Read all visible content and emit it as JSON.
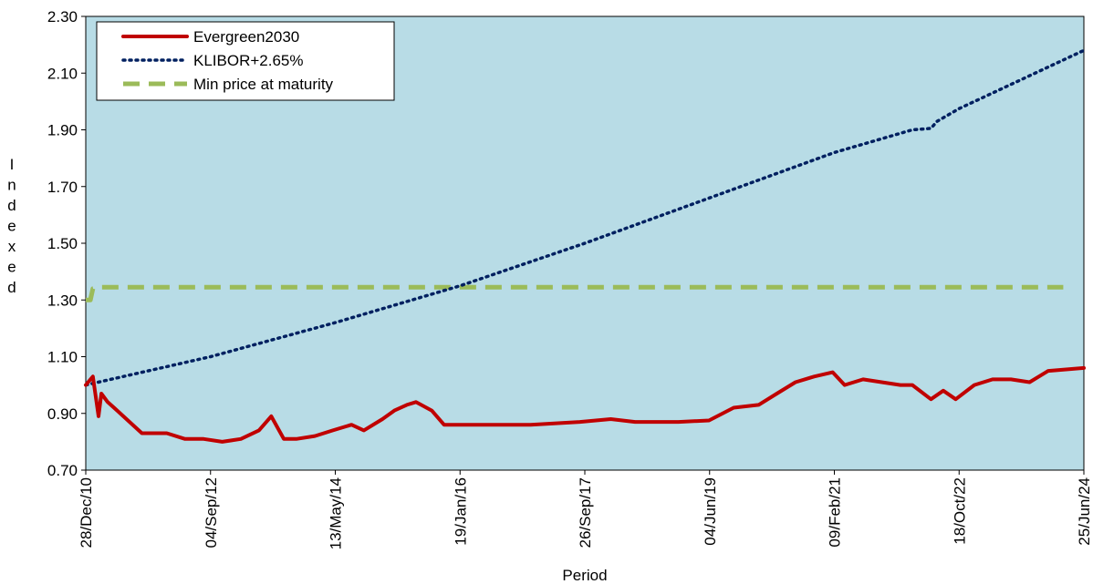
{
  "chart_data": {
    "type": "line",
    "title": "",
    "xlabel": "Period",
    "ylabel": "Indexed",
    "ylim": [
      0.7,
      2.3
    ],
    "yticks": [
      "0.70",
      "0.90",
      "1.10",
      "1.30",
      "1.50",
      "1.70",
      "1.90",
      "2.10",
      "2.30"
    ],
    "xlim": [
      "2010-12-28",
      "2024-06-25"
    ],
    "xticks": [
      {
        "date": "2010-12-28",
        "label": "28/Dec/10"
      },
      {
        "date": "2012-09-04",
        "label": "04/Sep/12"
      },
      {
        "date": "2014-05-13",
        "label": "13/May/14"
      },
      {
        "date": "2016-01-19",
        "label": "19/Jan/16"
      },
      {
        "date": "2017-09-26",
        "label": "26/Sep/17"
      },
      {
        "date": "2019-06-04",
        "label": "04/Jun/19"
      },
      {
        "date": "2021-02-09",
        "label": "09/Feb/21"
      },
      {
        "date": "2022-10-18",
        "label": "18/Oct/22"
      },
      {
        "date": "2024-06-25",
        "label": "25/Jun/24"
      }
    ],
    "grid": false,
    "legend_position": "top-left",
    "plot_background": "#b8dce6",
    "series": [
      {
        "name": "Evergreen2030",
        "color": "#c00000",
        "style": "solid",
        "x": [
          "2010-12-28",
          "2011-02-01",
          "2011-03-01",
          "2011-03-15",
          "2011-04-15",
          "2011-06-01",
          "2011-08-01",
          "2011-10-01",
          "2011-12-01",
          "2012-02-01",
          "2012-05-01",
          "2012-08-01",
          "2012-11-01",
          "2013-02-01",
          "2013-05-01",
          "2013-07-01",
          "2013-09-01",
          "2013-11-01",
          "2014-02-01",
          "2014-05-01",
          "2014-08-01",
          "2014-10-01",
          "2015-01-01",
          "2015-03-01",
          "2015-05-01",
          "2015-06-15",
          "2015-09-01",
          "2015-11-01",
          "2016-02-01",
          "2016-06-01",
          "2017-01-01",
          "2017-09-01",
          "2018-02-01",
          "2018-06-01",
          "2019-01-01",
          "2019-06-01",
          "2019-10-01",
          "2020-02-01",
          "2020-05-01",
          "2020-08-01",
          "2020-11-01",
          "2021-02-01",
          "2021-04-01",
          "2021-07-01",
          "2021-10-01",
          "2022-01-01",
          "2022-03-01",
          "2022-06-01",
          "2022-08-01",
          "2022-10-01",
          "2023-01-01",
          "2023-04-01",
          "2023-07-01",
          "2023-10-01",
          "2024-01-01",
          "2024-06-25"
        ],
        "values": [
          1.0,
          1.03,
          0.89,
          0.97,
          0.94,
          0.91,
          0.87,
          0.83,
          0.83,
          0.83,
          0.81,
          0.81,
          0.8,
          0.81,
          0.84,
          0.89,
          0.81,
          0.81,
          0.82,
          0.84,
          0.86,
          0.84,
          0.88,
          0.91,
          0.93,
          0.94,
          0.91,
          0.86,
          0.86,
          0.86,
          0.86,
          0.87,
          0.88,
          0.87,
          0.87,
          0.875,
          0.92,
          0.93,
          0.97,
          1.01,
          1.03,
          1.045,
          1.0,
          1.02,
          1.01,
          1.0,
          1.0,
          0.95,
          0.98,
          0.95,
          1.0,
          1.02,
          1.02,
          1.01,
          1.05,
          1.06
        ]
      },
      {
        "name": "KLIBOR+2.65%",
        "color": "#002060",
        "style": "dotted",
        "x": [
          "2010-12-28",
          "2012-09-04",
          "2014-05-13",
          "2016-01-19",
          "2017-09-26",
          "2019-06-04",
          "2021-02-09",
          "2022-03-01",
          "2022-06-01",
          "2022-07-01",
          "2022-10-18",
          "2024-06-25"
        ],
        "values": [
          1.0,
          1.1,
          1.22,
          1.35,
          1.5,
          1.66,
          1.82,
          1.9,
          1.905,
          1.93,
          1.975,
          2.18
        ]
      },
      {
        "name": "Min price at maturity",
        "color": "#9bbb59",
        "style": "dashed",
        "x": [
          "2010-12-28",
          "2011-01-20",
          "2011-02-01",
          "2011-03-15",
          "2024-03-15"
        ],
        "values": [
          1.3,
          1.3,
          1.34,
          1.345,
          1.345
        ]
      }
    ]
  }
}
